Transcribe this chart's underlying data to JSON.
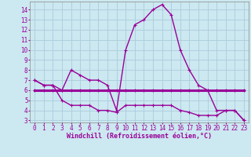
{
  "xlabel": "Windchill (Refroidissement éolien,°C)",
  "background_color": "#cce8f0",
  "grid_color": "#aaccdd",
  "line_color": "#990099",
  "xlim": [
    -0.5,
    23.5
  ],
  "ylim": [
    2.8,
    14.8
  ],
  "yticks": [
    3,
    4,
    5,
    6,
    7,
    8,
    9,
    10,
    11,
    12,
    13,
    14
  ],
  "xticks": [
    0,
    1,
    2,
    3,
    4,
    5,
    6,
    7,
    8,
    9,
    10,
    11,
    12,
    13,
    14,
    15,
    16,
    17,
    18,
    19,
    20,
    21,
    22,
    23
  ],
  "line1_x": [
    0,
    1,
    2,
    3,
    4,
    5,
    6,
    7,
    8,
    9,
    10,
    11,
    12,
    13,
    14,
    15,
    16,
    17,
    18,
    19,
    20,
    21,
    22,
    23
  ],
  "line1_y": [
    7.0,
    6.5,
    6.5,
    6.0,
    8.0,
    7.5,
    7.0,
    7.0,
    6.5,
    4.0,
    10.0,
    12.5,
    13.0,
    14.0,
    14.5,
    13.5,
    10.0,
    8.0,
    6.5,
    6.0,
    4.0,
    4.0,
    4.0,
    3.0
  ],
  "line2_x": [
    0,
    1,
    2,
    3,
    4,
    5,
    6,
    7,
    8,
    9,
    10,
    11,
    12,
    13,
    14,
    15,
    16,
    17,
    18,
    19,
    20,
    21,
    22,
    23
  ],
  "line2_y": [
    6.0,
    6.0,
    6.0,
    6.0,
    6.0,
    6.0,
    6.0,
    6.0,
    6.0,
    6.0,
    6.0,
    6.0,
    6.0,
    6.0,
    6.0,
    6.0,
    6.0,
    6.0,
    6.0,
    6.0,
    6.0,
    6.0,
    6.0,
    6.0
  ],
  "line3_x": [
    0,
    1,
    2,
    3,
    4,
    5,
    6,
    7,
    8,
    9,
    10,
    11,
    12,
    13,
    14,
    15,
    16,
    17,
    18,
    19,
    20,
    21,
    22,
    23
  ],
  "line3_y": [
    7.0,
    6.5,
    6.5,
    5.0,
    4.5,
    4.5,
    4.5,
    4.0,
    4.0,
    3.8,
    4.5,
    4.5,
    4.5,
    4.5,
    4.5,
    4.5,
    4.0,
    3.8,
    3.5,
    3.5,
    3.5,
    4.0,
    4.0,
    3.0
  ],
  "tick_fontsize": 5.5,
  "xlabel_fontsize": 6.0,
  "marker_size": 2.5,
  "line1_lw": 1.0,
  "line2_lw": 2.2,
  "line3_lw": 1.0
}
